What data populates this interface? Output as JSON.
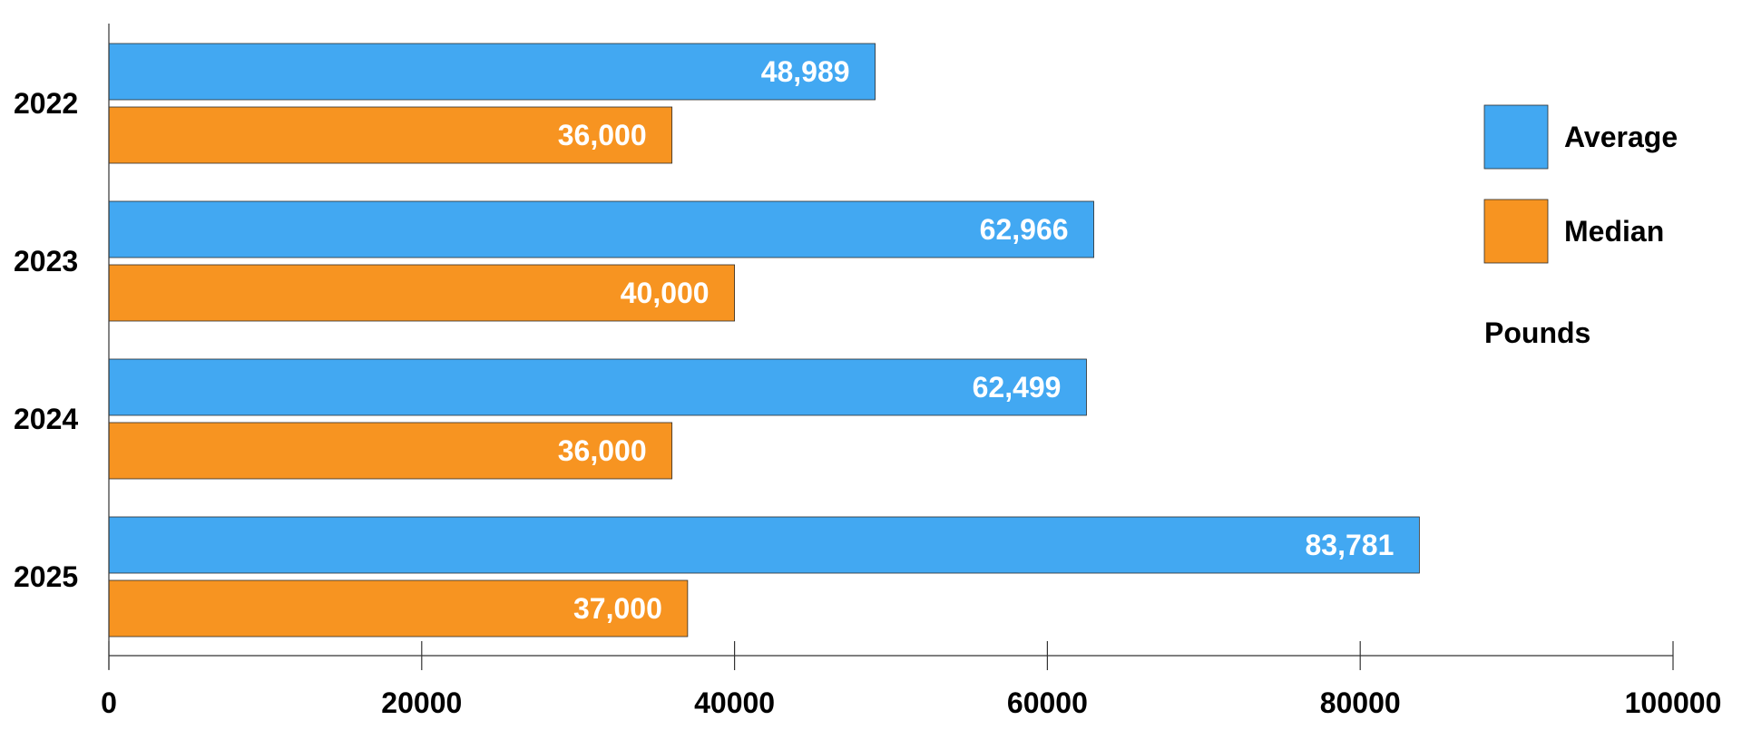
{
  "chart_data": {
    "type": "bar",
    "orientation": "horizontal",
    "categories": [
      "2022",
      "2023",
      "2024",
      "2025"
    ],
    "series": [
      {
        "name": "Average",
        "color": "#42A8F2",
        "values": [
          48989,
          62966,
          62499,
          83781
        ],
        "labels": [
          "48,989",
          "62,966",
          "62,499",
          "83,781"
        ]
      },
      {
        "name": "Median",
        "color": "#F79421",
        "values": [
          36000,
          40000,
          36000,
          37000
        ],
        "labels": [
          "36,000",
          "40,000",
          "36,000",
          "37,000"
        ]
      }
    ],
    "xlim": [
      0,
      100000
    ],
    "xticks": [
      "0",
      "20000",
      "40000",
      "60000",
      "80000",
      "100000"
    ],
    "unit_label": "Pounds",
    "legend_position": "right",
    "grid": false
  }
}
